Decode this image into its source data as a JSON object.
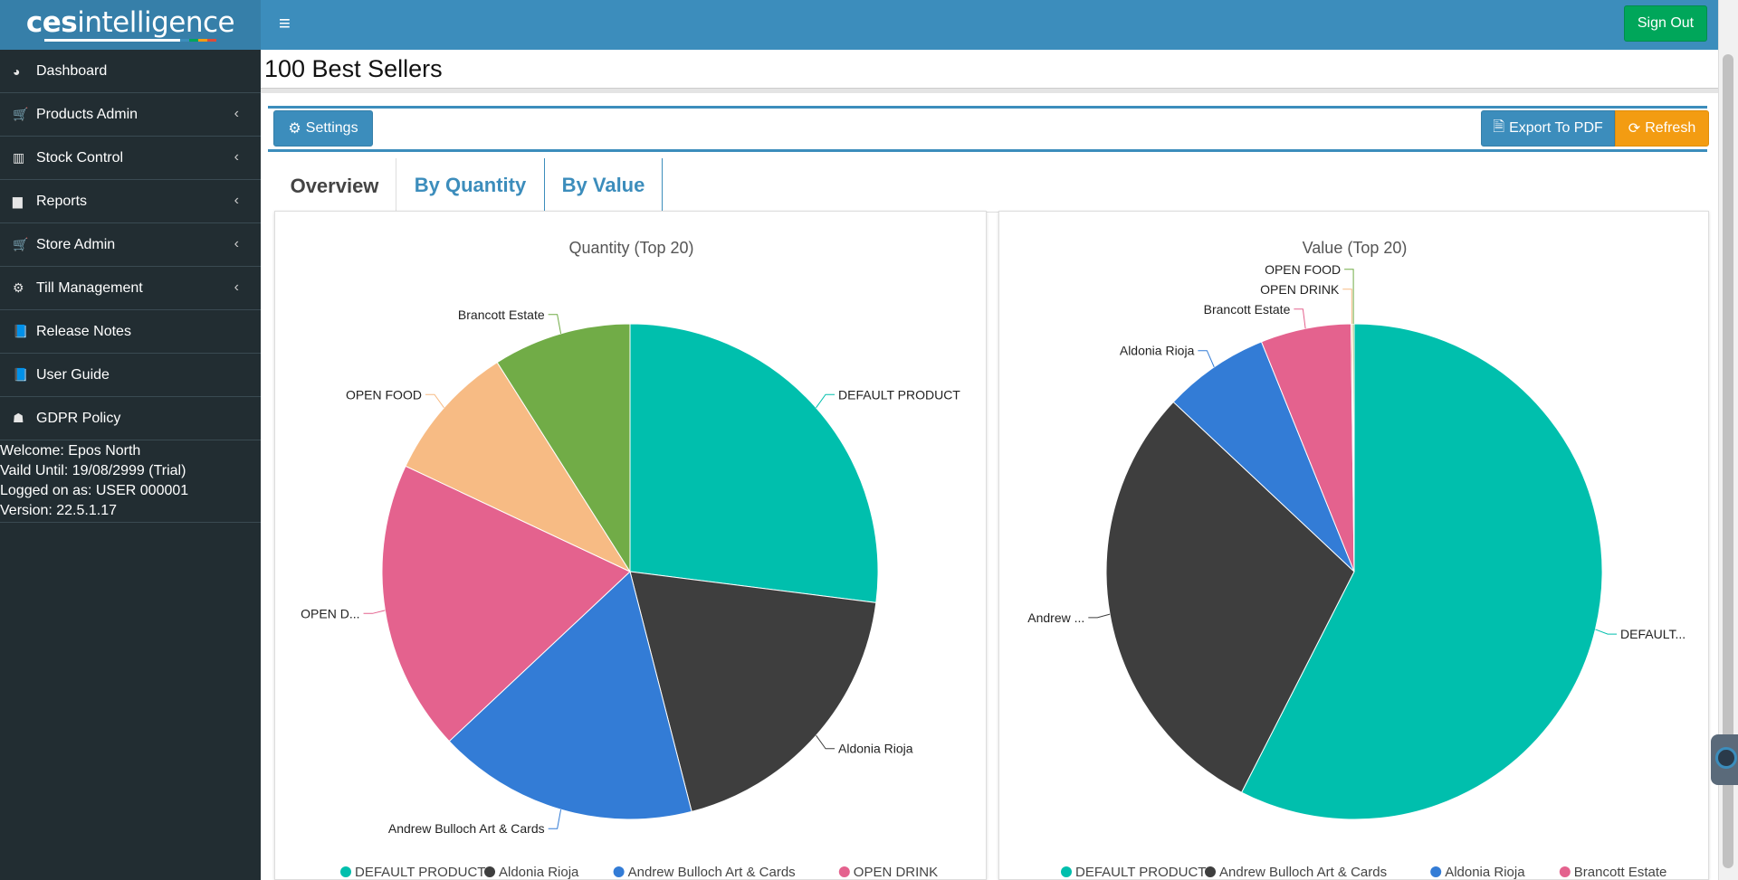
{
  "app": {
    "logo_bold": "ces",
    "logo_rest": "intelligence",
    "menu_icon": "hamburger-icon",
    "sign_out": "Sign Out"
  },
  "sidebar": {
    "items": [
      {
        "label": "Dashboard",
        "icon": "dashboard-icon",
        "glyph": "◕",
        "has_chevron": false
      },
      {
        "label": "Products Admin",
        "icon": "cart-icon",
        "glyph": "🛒",
        "has_chevron": true
      },
      {
        "label": "Stock Control",
        "icon": "barcode-icon",
        "glyph": "▥",
        "has_chevron": true
      },
      {
        "label": "Reports",
        "icon": "bar-chart-icon",
        "glyph": "▆",
        "has_chevron": true
      },
      {
        "label": "Store Admin",
        "icon": "cart-icon",
        "glyph": "🛒",
        "has_chevron": true
      },
      {
        "label": "Till Management",
        "icon": "gear-icon",
        "glyph": "⚙",
        "has_chevron": true
      },
      {
        "label": "Release Notes",
        "icon": "book-icon",
        "glyph": "📘",
        "has_chevron": false
      },
      {
        "label": "User Guide",
        "icon": "book-icon",
        "glyph": "📘",
        "has_chevron": false
      },
      {
        "label": "GDPR Policy",
        "icon": "user-secret-icon",
        "glyph": "☗",
        "has_chevron": false
      }
    ],
    "user_info": {
      "welcome": "Welcome: Epos North",
      "valid_until": "Vaild Until: 19/08/2999 (Trial)",
      "logged_on": "Logged on as: USER 000001",
      "version": "Version: 22.5.1.17"
    }
  },
  "page": {
    "title": "100 Best Sellers",
    "settings_label": "Settings",
    "export_label": "Export To PDF",
    "refresh_label": "Refresh",
    "tabs": [
      "Overview",
      "By Quantity",
      "By Value"
    ]
  },
  "colors": {
    "teal": "#00bfad",
    "dark": "#3e3e3e",
    "blue": "#337cd6",
    "pink": "#e4628e",
    "peach": "#f7bb84",
    "green": "#71ac47",
    "orange": "#f39c12"
  },
  "chart_data": [
    {
      "type": "pie",
      "title": "Quantity (Top 20)",
      "slices": [
        {
          "label": "DEFAULT PRODUCT",
          "value": 27.0,
          "color": "#00bfad"
        },
        {
          "label": "Aldonia Rioja",
          "value": 19.0,
          "color": "#3e3e3e"
        },
        {
          "label": "Andrew Bulloch Art & Cards",
          "value": 17.0,
          "color": "#337cd6"
        },
        {
          "label": "OPEN D...",
          "value": 19.0,
          "color": "#e4628e"
        },
        {
          "label": "OPEN FOOD",
          "value": 9.0,
          "color": "#f7bb84"
        },
        {
          "label": "Brancott Estate",
          "value": 9.0,
          "color": "#71ac47"
        }
      ],
      "legend": [
        "DEFAULT PRODUCT",
        "Aldonia Rioja",
        "Andrew Bulloch Art & Cards",
        "OPEN DRINK"
      ],
      "legend_colors": [
        "#00bfad",
        "#3e3e3e",
        "#337cd6",
        "#e4628e"
      ]
    },
    {
      "type": "pie",
      "title": "Value (Top 20)",
      "slices": [
        {
          "label": "DEFAULT...",
          "value": 57.5,
          "color": "#00bfad"
        },
        {
          "label": "Andrew ...",
          "value": 29.5,
          "color": "#3e3e3e"
        },
        {
          "label": "Aldonia Rioja",
          "value": 6.9,
          "color": "#337cd6"
        },
        {
          "label": "Brancott Estate",
          "value": 5.9,
          "color": "#e4628e"
        },
        {
          "label": "OPEN DRINK",
          "value": 0.1,
          "color": "#f7bb84"
        },
        {
          "label": "OPEN FOOD",
          "value": 0.1,
          "color": "#71ac47"
        }
      ],
      "legend": [
        "DEFAULT PRODUCT",
        "Andrew Bulloch Art & Cards",
        "Aldonia Rioja",
        "Brancott Estate"
      ],
      "legend_colors": [
        "#00bfad",
        "#3e3e3e",
        "#337cd6",
        "#e4628e"
      ]
    }
  ]
}
